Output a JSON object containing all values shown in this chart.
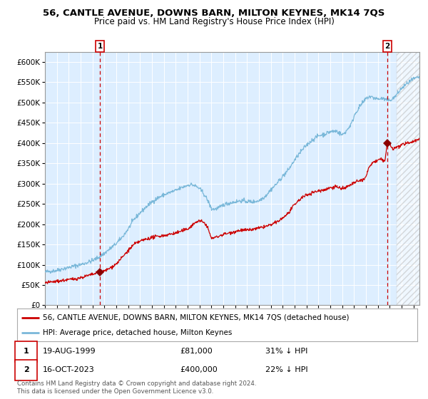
{
  "title": "56, CANTLE AVENUE, DOWNS BARN, MILTON KEYNES, MK14 7QS",
  "subtitle": "Price paid vs. HM Land Registry's House Price Index (HPI)",
  "title_fontsize": 9.5,
  "subtitle_fontsize": 8.5,
  "bg_color": "#ddeeff",
  "grid_color": "#ffffff",
  "hpi_color": "#7ab8d9",
  "price_color": "#cc0000",
  "marker_color": "#8b0000",
  "ylim": [
    0,
    625000
  ],
  "yticks": [
    0,
    50000,
    100000,
    150000,
    200000,
    250000,
    300000,
    350000,
    400000,
    450000,
    500000,
    550000,
    600000
  ],
  "ytick_labels": [
    "£0",
    "£50K",
    "£100K",
    "£150K",
    "£200K",
    "£250K",
    "£300K",
    "£350K",
    "£400K",
    "£450K",
    "£500K",
    "£550K",
    "£600K"
  ],
  "xlim_start": 1995.0,
  "xlim_end": 2026.5,
  "sale1_year": 1999.63,
  "sale1_price": 81000,
  "sale1_label": "1",
  "sale1_date": "19-AUG-1999",
  "sale1_pct": "31% ↓ HPI",
  "sale2_year": 2023.79,
  "sale2_price": 400000,
  "sale2_label": "2",
  "sale2_date": "16-OCT-2023",
  "sale2_pct": "22% ↓ HPI",
  "legend_line1": "56, CANTLE AVENUE, DOWNS BARN, MILTON KEYNES, MK14 7QS (detached house)",
  "legend_line2": "HPI: Average price, detached house, Milton Keynes",
  "footer": "Contains HM Land Registry data © Crown copyright and database right 2024.\nThis data is licensed under the Open Government Licence v3.0.",
  "xticks": [
    1995,
    1996,
    1997,
    1998,
    1999,
    2000,
    2001,
    2002,
    2003,
    2004,
    2005,
    2006,
    2007,
    2008,
    2009,
    2010,
    2011,
    2012,
    2013,
    2014,
    2015,
    2016,
    2017,
    2018,
    2019,
    2020,
    2021,
    2022,
    2023,
    2024,
    2025,
    2026
  ],
  "hatch_start": 2024.58
}
